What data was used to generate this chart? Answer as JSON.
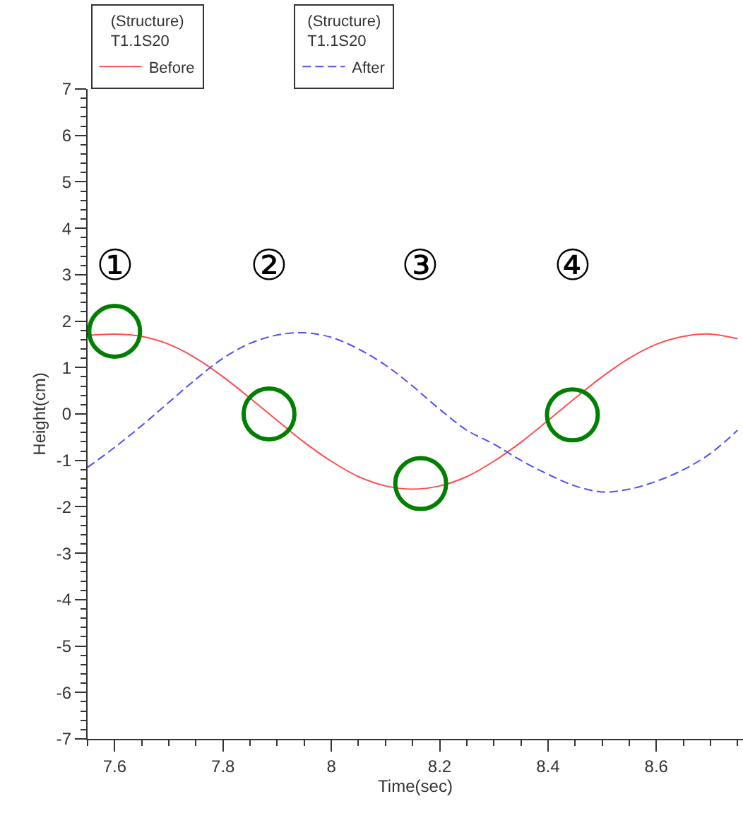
{
  "chart_data": {
    "type": "line",
    "xlabel": "Time(sec)",
    "ylabel": "Height(cm)",
    "legend_title": "(Structure)\nT1.1S20",
    "x": [
      7.55,
      7.6,
      7.65,
      7.7,
      7.75,
      7.8,
      7.85,
      7.9,
      7.95,
      8.0,
      8.05,
      8.1,
      8.15,
      8.2,
      8.25,
      8.3,
      8.35,
      8.4,
      8.45,
      8.5,
      8.55,
      8.6,
      8.65,
      8.7,
      8.75
    ],
    "series": [
      {
        "name": "Before",
        "color": "#ff4d4d",
        "line_style": "solid",
        "values": [
          1.69,
          1.72,
          1.67,
          1.5,
          1.2,
          0.8,
          0.34,
          -0.14,
          -0.61,
          -1.02,
          -1.35,
          -1.55,
          -1.62,
          -1.55,
          -1.35,
          -1.02,
          -0.61,
          -0.14,
          0.34,
          0.8,
          1.2,
          1.5,
          1.67,
          1.72,
          1.62
        ]
      },
      {
        "name": "After",
        "color": "#4d4dff",
        "line_style": "dashed",
        "values": [
          -1.15,
          -0.72,
          -0.25,
          0.25,
          0.75,
          1.2,
          1.52,
          1.7,
          1.75,
          1.65,
          1.4,
          1.05,
          0.6,
          0.1,
          -0.35,
          -0.65,
          -1.0,
          -1.3,
          -1.55,
          -1.68,
          -1.62,
          -1.45,
          -1.2,
          -0.85,
          -0.35
        ]
      },
      {
        "type": "scatter",
        "color": "#008000",
        "marker": "circle",
        "x": [
          7.6,
          7.885,
          8.165,
          8.445
        ],
        "values": [
          1.78,
          0.0,
          -1.5,
          -0.02
        ]
      }
    ],
    "annotations": [
      "①",
      "②",
      "③",
      "④"
    ],
    "xlim": [
      7.55,
      8.76
    ],
    "xticks": [
      7.6,
      7.8,
      8,
      8.2,
      8.4,
      8.6
    ],
    "ylim": [
      -7,
      7
    ],
    "yticks": [
      -7,
      -6,
      -5,
      -4,
      -3,
      -2,
      -1,
      0,
      1,
      2,
      3,
      4,
      5,
      6,
      7
    ],
    "legend": "top left"
  }
}
